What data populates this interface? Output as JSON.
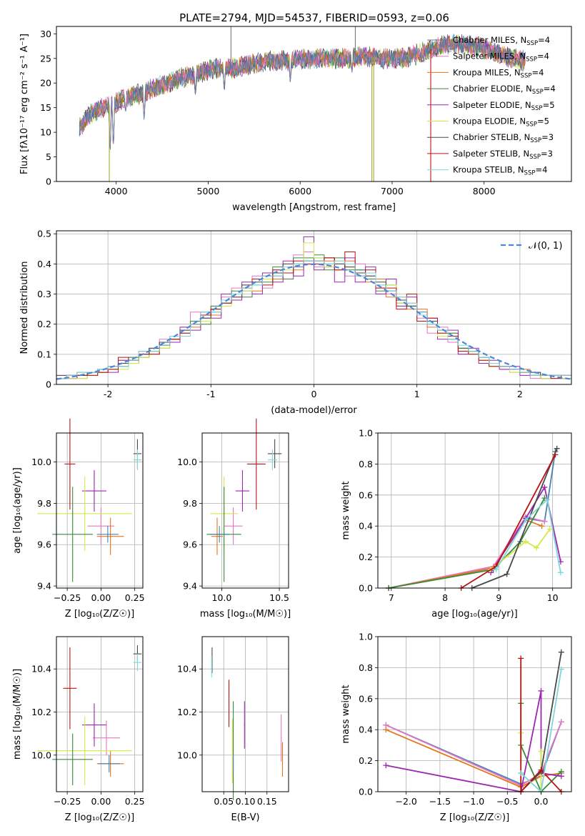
{
  "figure_title": "PLATE=2794, MJD=54537, FIBERID=0593, z=0.06",
  "palette": {
    "Chabrier MILES": "#4682b4",
    "Salpeter MILES": "#e377c2",
    "Kroupa MILES": "#e6761e",
    "Chabrier ELODIE": "#3a8a3a",
    "Salpeter ELODIE": "#9b27b0",
    "Kroupa ELODIE": "#d4e84a",
    "Chabrier STELIB": "#4a4a4a",
    "Salpeter STELIB": "#b81414",
    "Kroupa STELIB": "#7fd6dc",
    "gaussian": "#4a86d9",
    "grid": "#b0b0b0"
  },
  "chart_data": [
    {
      "id": "spectrum",
      "type": "line",
      "xlabel": "wavelength [Angstrom, rest frame]",
      "ylabel": "Flux [fλ10⁻¹⁷ erg cm⁻² s⁻¹ A⁻¹]",
      "xlim": [
        3350,
        8950
      ],
      "ylim": [
        0,
        31.5
      ],
      "xticks": [
        4000,
        5000,
        6000,
        7000,
        8000
      ],
      "yticks": [
        0,
        5,
        10,
        15,
        20,
        25,
        30
      ],
      "grid": false,
      "legend_placement": "top-right",
      "series_names": [
        "Chabrier MILES, N_SSP=4",
        "Salpeter MILES, N_SSP=4",
        "Kroupa MILES, N_SSP=4",
        "Chabrier ELODIE, N_SSP=4",
        "Salpeter ELODIE, N_SSP=5",
        "Kroupa ELODIE, N_SSP=5",
        "Chabrier STELIB, N_SSP=3",
        "Salpeter STELIB, N_SSP=3",
        "Kroupa STELIB, N_SSP=4"
      ],
      "legend_entries": [
        {
          "base": "Chabrier MILES, N",
          "sub": "SSP",
          "tail": "=4"
        },
        {
          "base": "Salpeter MILES, N",
          "sub": "SSP",
          "tail": "=4"
        },
        {
          "base": "Kroupa MILES, N",
          "sub": "SSP",
          "tail": "=4"
        },
        {
          "base": "Chabrier ELODIE, N",
          "sub": "SSP",
          "tail": "=4"
        },
        {
          "base": "Salpeter ELODIE, N",
          "sub": "SSP",
          "tail": "=5"
        },
        {
          "base": "Kroupa ELODIE, N",
          "sub": "SSP",
          "tail": "=5"
        },
        {
          "base": "Chabrier STELIB, N",
          "sub": "SSP",
          "tail": "=3"
        },
        {
          "base": "Salpeter STELIB, N",
          "sub": "SSP",
          "tail": "=3"
        },
        {
          "base": "Kroupa STELIB, N",
          "sub": "SSP",
          "tail": "=4"
        }
      ],
      "continuum": {
        "x": [
          3600,
          3700,
          3800,
          3900,
          4000,
          4100,
          4200,
          4300,
          4400,
          4500,
          4700,
          4900,
          5100,
          5300,
          5500,
          5700,
          5900,
          6100,
          6300,
          6500,
          6700,
          6900,
          7100,
          7300,
          7500,
          7700,
          7900,
          8100,
          8300,
          8450
        ],
        "y": [
          11,
          13.5,
          14.5,
          15.5,
          16,
          17,
          17.5,
          18,
          19,
          19.5,
          21,
          22,
          23,
          23,
          24,
          24.5,
          24.5,
          25,
          25,
          25,
          25.5,
          25,
          25,
          26,
          27.5,
          28,
          27.5,
          26.5,
          25,
          24.5
        ]
      },
      "absorption_features": [
        {
          "x": 3934,
          "y": 5
        },
        {
          "x": 3969,
          "y": 6
        },
        {
          "x": 4102,
          "y": 14
        },
        {
          "x": 4304,
          "y": 12
        },
        {
          "x": 4861,
          "y": 17.5
        },
        {
          "x": 5175,
          "y": 18
        },
        {
          "x": 5893,
          "y": 20
        },
        {
          "x": 6563,
          "y": 22
        }
      ],
      "spikes": [
        {
          "x": 3925,
          "y": 0
        },
        {
          "x": 5248,
          "y": 31.5
        },
        {
          "x": 6600,
          "y": 31.5
        },
        {
          "x": 6780,
          "y": 0
        },
        {
          "x": 6800,
          "y": 0
        },
        {
          "x": 7420,
          "y": 0
        }
      ]
    },
    {
      "id": "residual-histogram",
      "type": "histogram",
      "xlabel": "(data-model)/error",
      "ylabel": "Normed distribution",
      "xlim": [
        -2.5,
        2.5
      ],
      "ylim": [
        0,
        0.51
      ],
      "xticks": [
        -2,
        -1,
        0,
        1,
        2
      ],
      "yticks": [
        0.0,
        0.1,
        0.2,
        0.3,
        0.4,
        0.5
      ],
      "grid": true,
      "legend_placement": "top-right",
      "gaussian_label": "𝒩(0, 1)",
      "bin_width": 0.1,
      "bin_start": -2.5,
      "bin_counts_note_series": [
        [
          0.02,
          0.02,
          0.03,
          0.04,
          0.04,
          0.05,
          0.07,
          0.08,
          0.1,
          0.11,
          0.13,
          0.15,
          0.17,
          0.2,
          0.22,
          0.24,
          0.27,
          0.3,
          0.31,
          0.33,
          0.35,
          0.36,
          0.37,
          0.39,
          0.41,
          0.42,
          0.4,
          0.4,
          0.39,
          0.38,
          0.36,
          0.33,
          0.3,
          0.28,
          0.26,
          0.24,
          0.2,
          0.18,
          0.16,
          0.12,
          0.1,
          0.09,
          0.07,
          0.06,
          0.05,
          0.04,
          0.03,
          0.03,
          0.02,
          0.02
        ],
        [
          0.03,
          0.02,
          0.03,
          0.03,
          0.04,
          0.06,
          0.06,
          0.09,
          0.1,
          0.12,
          0.15,
          0.16,
          0.19,
          0.24,
          0.22,
          0.26,
          0.29,
          0.32,
          0.33,
          0.36,
          0.32,
          0.38,
          0.4,
          0.43,
          0.44,
          0.39,
          0.39,
          0.38,
          0.36,
          0.4,
          0.37,
          0.32,
          0.3,
          0.26,
          0.27,
          0.22,
          0.17,
          0.19,
          0.14,
          0.1,
          0.1,
          0.08,
          0.07,
          0.05,
          0.05,
          0.04,
          0.02,
          0.03,
          0.02,
          0.03
        ],
        [
          0.02,
          0.03,
          0.02,
          0.04,
          0.04,
          0.05,
          0.08,
          0.07,
          0.09,
          0.11,
          0.12,
          0.14,
          0.18,
          0.19,
          0.23,
          0.23,
          0.28,
          0.29,
          0.32,
          0.31,
          0.35,
          0.35,
          0.37,
          0.38,
          0.4,
          0.41,
          0.41,
          0.38,
          0.41,
          0.37,
          0.34,
          0.35,
          0.29,
          0.29,
          0.25,
          0.25,
          0.19,
          0.17,
          0.17,
          0.11,
          0.11,
          0.08,
          0.07,
          0.06,
          0.04,
          0.05,
          0.03,
          0.03,
          0.03,
          0.02
        ],
        [
          0.02,
          0.03,
          0.04,
          0.03,
          0.05,
          0.05,
          0.06,
          0.09,
          0.09,
          0.12,
          0.13,
          0.15,
          0.16,
          0.21,
          0.2,
          0.26,
          0.27,
          0.31,
          0.29,
          0.35,
          0.34,
          0.39,
          0.35,
          0.42,
          0.42,
          0.43,
          0.38,
          0.42,
          0.38,
          0.38,
          0.35,
          0.31,
          0.33,
          0.27,
          0.26,
          0.23,
          0.21,
          0.16,
          0.17,
          0.12,
          0.11,
          0.09,
          0.06,
          0.06,
          0.05,
          0.04,
          0.03,
          0.02,
          0.03,
          0.02
        ],
        [
          0.02,
          0.02,
          0.03,
          0.04,
          0.05,
          0.04,
          0.08,
          0.07,
          0.11,
          0.1,
          0.14,
          0.14,
          0.19,
          0.18,
          0.24,
          0.22,
          0.3,
          0.28,
          0.34,
          0.3,
          0.37,
          0.34,
          0.41,
          0.36,
          0.49,
          0.38,
          0.42,
          0.34,
          0.42,
          0.34,
          0.39,
          0.3,
          0.35,
          0.26,
          0.29,
          0.21,
          0.22,
          0.15,
          0.18,
          0.1,
          0.12,
          0.07,
          0.08,
          0.05,
          0.06,
          0.03,
          0.04,
          0.02,
          0.03,
          0.02
        ],
        [
          0.02,
          0.02,
          0.02,
          0.03,
          0.04,
          0.05,
          0.05,
          0.07,
          0.09,
          0.1,
          0.12,
          0.15,
          0.16,
          0.2,
          0.21,
          0.25,
          0.26,
          0.3,
          0.31,
          0.35,
          0.35,
          0.37,
          0.38,
          0.4,
          0.47,
          0.42,
          0.39,
          0.41,
          0.39,
          0.37,
          0.37,
          0.33,
          0.33,
          0.27,
          0.27,
          0.21,
          0.21,
          0.16,
          0.15,
          0.12,
          0.1,
          0.08,
          0.06,
          0.06,
          0.04,
          0.04,
          0.03,
          0.02,
          0.02,
          0.02
        ],
        [
          0.03,
          0.03,
          0.03,
          0.04,
          0.04,
          0.06,
          0.07,
          0.08,
          0.1,
          0.12,
          0.14,
          0.15,
          0.18,
          0.2,
          0.22,
          0.25,
          0.28,
          0.29,
          0.33,
          0.34,
          0.36,
          0.37,
          0.4,
          0.4,
          0.41,
          0.41,
          0.42,
          0.4,
          0.39,
          0.37,
          0.36,
          0.34,
          0.31,
          0.28,
          0.26,
          0.23,
          0.21,
          0.18,
          0.15,
          0.12,
          0.11,
          0.09,
          0.07,
          0.06,
          0.05,
          0.04,
          0.04,
          0.03,
          0.03,
          0.03
        ],
        [
          0.02,
          0.03,
          0.03,
          0.03,
          0.04,
          0.05,
          0.09,
          0.08,
          0.1,
          0.1,
          0.13,
          0.15,
          0.17,
          0.2,
          0.23,
          0.25,
          0.27,
          0.3,
          0.32,
          0.35,
          0.33,
          0.38,
          0.37,
          0.41,
          0.4,
          0.4,
          0.42,
          0.38,
          0.44,
          0.36,
          0.38,
          0.32,
          0.32,
          0.25,
          0.3,
          0.21,
          0.22,
          0.17,
          0.16,
          0.11,
          0.1,
          0.08,
          0.06,
          0.06,
          0.05,
          0.04,
          0.03,
          0.03,
          0.02,
          0.03
        ],
        [
          0.02,
          0.03,
          0.04,
          0.04,
          0.05,
          0.06,
          0.06,
          0.08,
          0.11,
          0.11,
          0.13,
          0.16,
          0.16,
          0.2,
          0.24,
          0.24,
          0.28,
          0.3,
          0.32,
          0.33,
          0.36,
          0.36,
          0.39,
          0.4,
          0.41,
          0.41,
          0.4,
          0.41,
          0.4,
          0.36,
          0.37,
          0.33,
          0.31,
          0.29,
          0.27,
          0.23,
          0.2,
          0.18,
          0.15,
          0.13,
          0.11,
          0.09,
          0.07,
          0.06,
          0.05,
          0.04,
          0.03,
          0.03,
          0.03,
          0.03
        ]
      ]
    },
    {
      "id": "age-vs-Z",
      "type": "errorbar",
      "xlabel": "Z [log₁₀(Z/Z☉)]",
      "ylabel": "age  [log₁₀(age/yr)]",
      "xlim": [
        -0.33,
        0.31
      ],
      "ylim": [
        9.39,
        10.14
      ],
      "xticks": [
        -0.25,
        0.0,
        0.25
      ],
      "xtick_labels": [
        "−0.25",
        "0.00",
        "0.25"
      ],
      "yticks": [
        9.4,
        9.6,
        9.8,
        10.0
      ],
      "yticklabels": [
        "9.4",
        "9.6",
        "9.8",
        "10.0"
      ],
      "grid": true
    },
    {
      "id": "age-vs-mass",
      "type": "errorbar",
      "xlabel": "mass [log₁₀(M/M☉)]",
      "ylabel": "",
      "xlim": [
        9.83,
        10.58
      ],
      "ylim": [
        9.39,
        10.14
      ],
      "xticks": [
        10.0,
        10.5
      ],
      "xtick_labels": [
        "10.0",
        "10.5"
      ],
      "yticks": [
        9.4,
        9.6,
        9.8,
        10.0
      ],
      "yticklabels": [
        "9.4",
        "9.6",
        "9.8",
        "10.0"
      ],
      "grid": true
    },
    {
      "id": "mass-weight-vs-age",
      "type": "line",
      "xlabel": "age  [log₁₀(age/yr)]",
      "ylabel": "mass weight",
      "xlim": [
        6.75,
        10.35
      ],
      "ylim": [
        0,
        1.0
      ],
      "xticks": [
        7,
        8,
        9,
        10
      ],
      "xtick_labels": [
        "7",
        "8",
        "9",
        "10"
      ],
      "yticks": [
        0,
        0.2,
        0.4,
        0.6,
        0.8,
        1.0
      ],
      "yticklabels": [
        "0.0",
        "0.2",
        "0.4",
        "0.6",
        "0.8",
        "1.0"
      ],
      "grid": true,
      "series": [
        {
          "x": [
            6.95,
            8.9,
            9.5,
            9.85,
            10.05
          ],
          "y": [
            0.0,
            0.13,
            0.45,
            0.43,
            0.88
          ]
        },
        {
          "x": [
            6.95,
            8.9,
            9.5,
            9.85
          ],
          "y": [
            0.0,
            0.14,
            0.46,
            0.43
          ]
        },
        {
          "x": [
            6.95,
            8.9,
            9.5,
            9.8
          ],
          "y": [
            0.0,
            0.13,
            0.44,
            0.4
          ]
        },
        {
          "x": [
            6.95,
            8.9,
            9.4,
            9.85
          ],
          "y": [
            0.0,
            0.12,
            0.3,
            0.58
          ]
        },
        {
          "x": [
            8.85,
            9.5,
            9.85,
            10.15
          ],
          "y": [
            0.1,
            0.45,
            0.65,
            0.17
          ]
        },
        {
          "x": [
            8.85,
            9.5,
            9.7,
            9.95
          ],
          "y": [
            0.12,
            0.3,
            0.26,
            0.38
          ]
        },
        {
          "x": [
            8.5,
            9.15,
            10.08
          ],
          "y": [
            0.0,
            0.09,
            0.9
          ]
        },
        {
          "x": [
            8.3,
            8.95,
            10.05
          ],
          "y": [
            0.0,
            0.14,
            0.86
          ]
        },
        {
          "x": [
            8.95,
            9.5,
            9.9,
            10.15
          ],
          "y": [
            0.12,
            0.44,
            0.57,
            0.1
          ]
        }
      ]
    },
    {
      "id": "mass-vs-Z",
      "type": "errorbar",
      "xlabel": "Z [log₁₀(Z/Z☉)]",
      "ylabel": "mass [log₁₀(M/M☉)]",
      "xlim": [
        -0.33,
        0.31
      ],
      "ylim": [
        9.83,
        10.55
      ],
      "xticks": [
        -0.25,
        0.0,
        0.25
      ],
      "xtick_labels": [
        "−0.25",
        "0.00",
        "0.25"
      ],
      "yticks": [
        10.0,
        10.2,
        10.4
      ],
      "yticklabels": [
        "10.0",
        "10.2",
        "10.4"
      ],
      "grid": true
    },
    {
      "id": "mass-vs-EBV",
      "type": "errorbar",
      "xlabel": "E(B-V)",
      "ylabel": "",
      "xlim": [
        0.0,
        0.2
      ],
      "ylim": [
        9.83,
        10.55
      ],
      "xticks": [
        0.05,
        0.1,
        0.15
      ],
      "xtick_labels": [
        "0.05",
        "0.10",
        "0.15"
      ],
      "yticks": [
        10.0,
        10.2,
        10.4
      ],
      "yticklabels": [
        "10.0",
        "10.2",
        "10.4"
      ],
      "grid": true
    },
    {
      "id": "mass-weight-vs-Z",
      "type": "line",
      "xlabel": "Z [log₁₀(Z/Z☉)]",
      "ylabel": "mass weight",
      "xlim": [
        -2.42,
        0.45
      ],
      "ylim": [
        0,
        1.0
      ],
      "xticks": [
        -2.0,
        -1.5,
        -1.0,
        -0.5,
        0.0
      ],
      "xtick_labels": [
        "−2.0",
        "−1.5",
        "−1.0",
        "−0.5",
        "0.0"
      ],
      "yticks": [
        0,
        0.2,
        0.4,
        0.6,
        0.8,
        1.0
      ],
      "yticklabels": [
        "0.0",
        "0.2",
        "0.4",
        "0.6",
        "0.8",
        "1.0"
      ],
      "grid": true,
      "series": [
        {
          "x": [
            -2.3,
            -0.3,
            0.0,
            0.3
          ],
          "y": [
            0.43,
            0.05,
            0.1,
            0.45
          ]
        },
        {
          "x": [
            -2.3,
            -0.3,
            0.0,
            0.3
          ],
          "y": [
            0.43,
            0.04,
            0.12,
            0.45
          ]
        },
        {
          "x": [
            -2.3,
            -0.3,
            0.0,
            0.3
          ],
          "y": [
            0.4,
            0.03,
            0.1,
            0.12
          ]
        },
        {
          "x": [
            -0.3,
            -0.3,
            0.0,
            0.3
          ],
          "y": [
            0.57,
            0.3,
            0.0,
            0.13
          ]
        },
        {
          "x": [
            -2.3,
            -0.3,
            0.0,
            0.0,
            0.3
          ],
          "y": [
            0.17,
            0.0,
            0.65,
            0.12,
            0.1
          ]
        },
        {
          "x": [
            -0.3,
            -0.3,
            0.0,
            0.0
          ],
          "y": [
            0.38,
            0.12,
            0.0,
            0.26
          ]
        },
        {
          "x": [
            -0.3,
            0.0,
            0.3
          ],
          "y": [
            0.0,
            0.13,
            0.9
          ]
        },
        {
          "x": [
            -0.3,
            -0.3,
            0.0,
            0.3
          ],
          "y": [
            0.86,
            0.0,
            0.14,
            0.0
          ]
        },
        {
          "x": [
            -0.3,
            0.0,
            0.3
          ],
          "y": [
            0.12,
            0.0,
            0.79
          ]
        }
      ]
    }
  ]
}
